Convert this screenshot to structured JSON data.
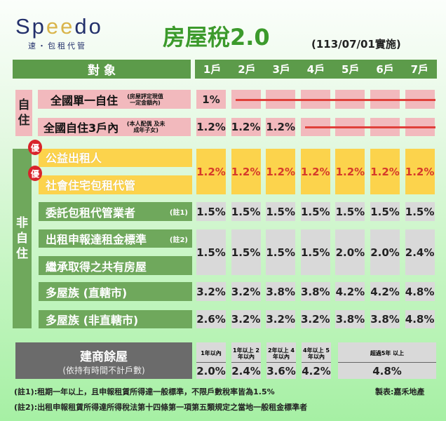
{
  "logo": {
    "brand_pre": "Sp",
    "brand_e1": "e",
    "brand_e2": "e",
    "brand_post": "do",
    "tagline": "速・包租代管"
  },
  "title": "房屋稅2.0",
  "effective": "(113/07/01實施)",
  "header": {
    "subject": "對 象",
    "units": [
      "1戶",
      "2戶",
      "3戶",
      "4戶",
      "5戶",
      "6戶",
      "7戶"
    ]
  },
  "self_use": {
    "group": "自住",
    "rows": [
      {
        "label": "全國單一自住",
        "note": "(房屋評定現值 一定金額內)",
        "values": [
          "1%"
        ]
      },
      {
        "label": "全國自住3戶內",
        "note": "(本人配偶 及未成年子女)",
        "values": [
          "1.2%",
          "1.2%",
          "1.2%"
        ]
      }
    ]
  },
  "non_self": {
    "group": "非自住",
    "preferred_badge": "優",
    "preferred_labels": [
      "公益出租人",
      "社會住宅包租代管"
    ],
    "preferred_values": [
      "1.2%",
      "1.2%",
      "1.2%",
      "1.2%",
      "1.2%",
      "1.2%",
      "1.2%"
    ],
    "rows": [
      {
        "label": "委託包租代管業者",
        "note": "(註1)",
        "values": [
          "1.5%",
          "1.5%",
          "1.5%",
          "1.5%",
          "1.5%",
          "1.5%",
          "1.5%"
        ]
      },
      {
        "label": "出租申報達租金標準",
        "note": "(註2)",
        "label2": "繼承取得之共有房屋",
        "values": [
          "1.5%",
          "1.5%",
          "1.5%",
          "1.5%",
          "2.0%",
          "2.0%",
          "2.4%"
        ]
      },
      {
        "label": "多屋族 (直轄市)",
        "values": [
          "3.2%",
          "3.2%",
          "3.8%",
          "3.8%",
          "4.2%",
          "4.2%",
          "4.8%"
        ]
      },
      {
        "label": "多屋族 (非直轄市)",
        "values": [
          "2.6%",
          "3.2%",
          "3.2%",
          "3.2%",
          "3.8%",
          "3.8%",
          "4.8%"
        ]
      }
    ]
  },
  "builder": {
    "title": "建商餘屋",
    "subtitle": "(依持有時間不計戶數)",
    "periods": [
      {
        "h": "1年以內",
        "v": "2.0%"
      },
      {
        "h": "1年以上 2年以內",
        "v": "2.4%"
      },
      {
        "h": "2年以上 4年以內",
        "v": "3.6%"
      },
      {
        "h": "4年以上 5年以內",
        "v": "4.2%"
      },
      {
        "h": "超過5年 以上",
        "v": "4.8%"
      }
    ]
  },
  "notes": [
    "(註1):租期一年以上，且申報租賃所得達一般標準，不限戶數稅率皆為1.5%",
    "(註2):出租申報租賃所得達所得稅法第十四條第一項第五類規定之當地一般租金標準者"
  ],
  "credit": "製表:嘉禾地產",
  "colors": {
    "header": "#5c9b4a",
    "label": "#6fa85c",
    "pink": "#f2b9bd",
    "yellow": "#fcd34c",
    "grey": "#d9d9d9",
    "red": "#d63a2a"
  }
}
